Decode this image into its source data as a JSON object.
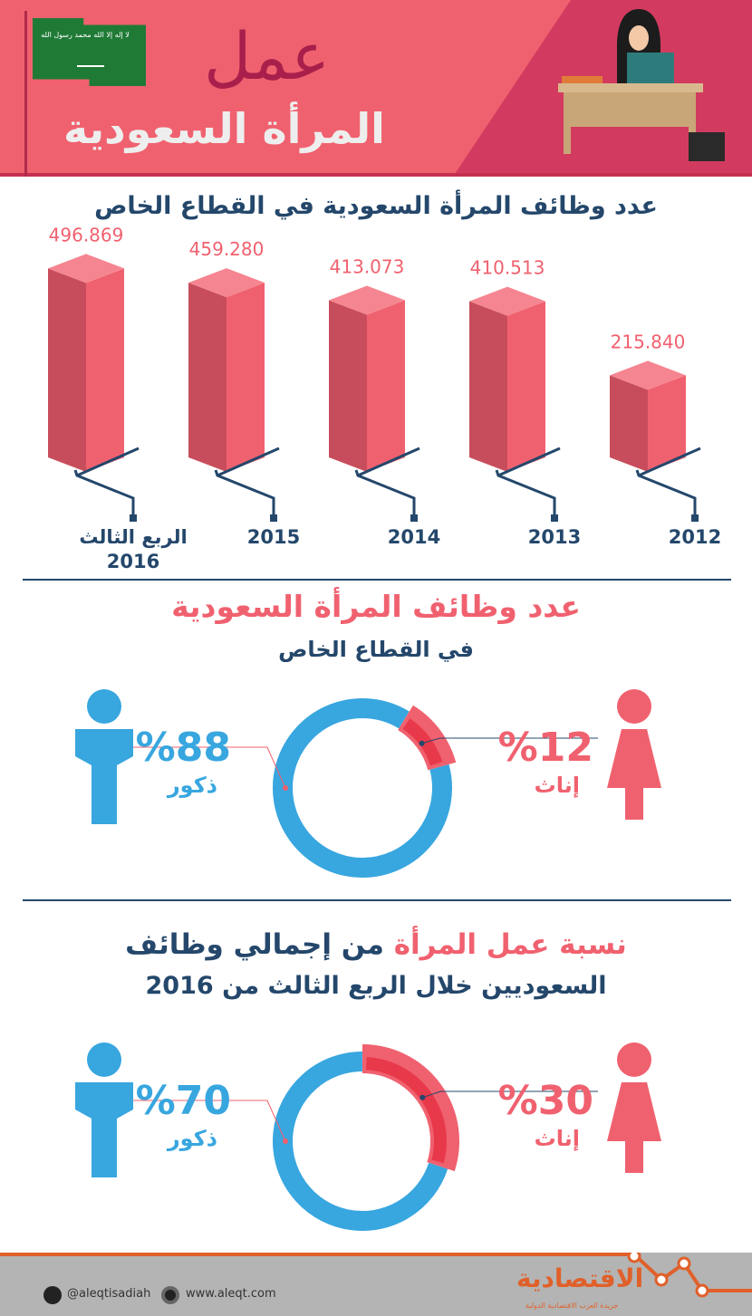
{
  "header": {
    "title_line1": "عمل",
    "title_line2": "المرأة السعودية",
    "flag_text": "لا إله إلا الله محمد رسول الله"
  },
  "colors": {
    "pink": "#f0616f",
    "dark_pink": "#d23b5f",
    "red": "#e8394a",
    "blue": "#38a6df",
    "navy": "#24476b"
  },
  "section1": {
    "title": "عدد وظائف المرأة السعودية في القطاع الخاص"
  },
  "chart_data": [
    {
      "type": "bar",
      "title": "عدد وظائف المرأة السعودية في القطاع الخاص",
      "categories": [
        "الربع الثالث 2016",
        "2015",
        "2014",
        "2013",
        "2012"
      ],
      "values": [
        496.869,
        459.28,
        413.073,
        410.513,
        215.84
      ],
      "value_labels": [
        "496.869",
        "459.280",
        "413.073",
        "410.513",
        "215.840"
      ],
      "category_lines": [
        [
          "الربع الثالث",
          "2016"
        ],
        [
          "2015"
        ],
        [
          "2014"
        ],
        [
          "2013"
        ],
        [
          "2012"
        ]
      ]
    },
    {
      "type": "pie",
      "title": "عدد وظائف المرأة السعودية",
      "subtitle": "في القطاع الخاص",
      "slices": [
        {
          "name": "إناث",
          "value": 12,
          "label": "%12"
        },
        {
          "name": "ذكور",
          "value": 88,
          "label": "%88"
        }
      ]
    },
    {
      "type": "pie",
      "title_highlight": "نسبة عمل المرأة",
      "title_rest": "من إجمالي وظائف",
      "subtitle": "السعوديين خلال الربع الثالث من 2016",
      "slices": [
        {
          "name": "إناث",
          "value": 30,
          "label": "%30"
        },
        {
          "name": "ذكور",
          "value": 70,
          "label": "%70"
        }
      ]
    }
  ],
  "footer": {
    "twitter": "@aleqtisadiah",
    "website": "www.aleqt.com",
    "logo": "الاقتصادية",
    "logo_sub": "جريدة العرب الاقتصادية الدولية"
  }
}
